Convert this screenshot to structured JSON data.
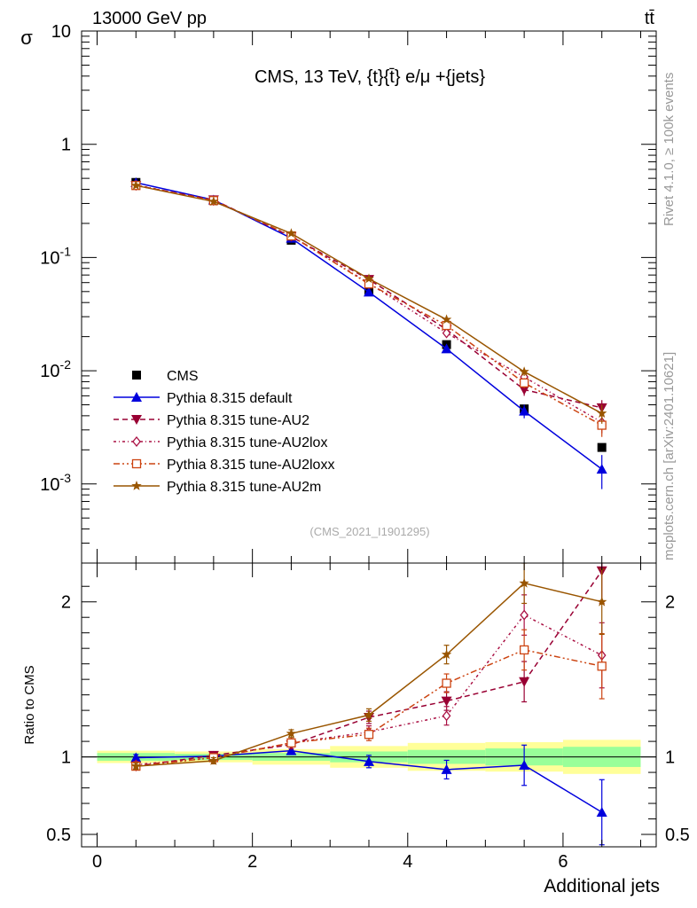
{
  "header": {
    "energy_label": "13000 GeV pp",
    "process_label": "tt̄",
    "side_label_top": "Rivet 4.1.0, ≥ 100k events",
    "side_label_bottom": "mcplots.cern.ch [arXiv:2401.10621]"
  },
  "chart_data": [
    {
      "type": "scatter",
      "panel": "main",
      "title": "CMS, 13 TeV, {t}{t̄} e/μ +{jets}",
      "analysis_tag": "(CMS_2021_I1901295)",
      "ylabel": "σ",
      "yscale": "log",
      "ylim": [
        0.0002,
        10
      ],
      "y_tick_labels": [
        "10",
        "1",
        "10^-1",
        "10^-2",
        "10^-3"
      ],
      "xlim": [
        -0.2,
        7.2
      ],
      "x": [
        0.5,
        1.5,
        2.5,
        3.5,
        4.5,
        5.5,
        6.5
      ],
      "series": [
        {
          "name": "CMS",
          "color": "#000000",
          "marker": "square",
          "line": "none",
          "values": [
            0.46,
            0.32,
            0.142,
            0.051,
            0.017,
            0.0046,
            0.0021
          ]
        },
        {
          "name": "Pythia 8.315 default",
          "color": "#0000dd",
          "marker": "triangle-up",
          "line": "solid",
          "values": [
            0.458,
            0.322,
            0.148,
            0.0495,
            0.0156,
            0.0044,
            0.00135
          ],
          "errors": [
            0.005,
            0.004,
            0.003,
            0.0015,
            0.0008,
            0.0006,
            0.00045
          ]
        },
        {
          "name": "Pythia 8.315 tune-AU2",
          "color": "#990033",
          "marker": "triangle-down",
          "line": "dashed",
          "values": [
            0.432,
            0.323,
            0.153,
            0.064,
            0.0231,
            0.0068,
            0.0047
          ],
          "errors": [
            0.005,
            0.004,
            0.003,
            0.0015,
            0.001,
            0.0008,
            0.0008
          ]
        },
        {
          "name": "Pythia 8.315 tune-AU2lox",
          "color": "#aa1144",
          "marker": "diamond-open",
          "line": "dashdot",
          "values": [
            0.437,
            0.318,
            0.155,
            0.0592,
            0.0215,
            0.0088,
            0.0035
          ],
          "errors": [
            0.005,
            0.004,
            0.003,
            0.0015,
            0.001,
            0.0008,
            0.0007
          ]
        },
        {
          "name": "Pythia 8.315 tune-AU2loxx",
          "color": "#cc4411",
          "marker": "square-open",
          "line": "dashdotdot",
          "values": [
            0.432,
            0.318,
            0.155,
            0.0584,
            0.0251,
            0.0078,
            0.0033
          ],
          "errors": [
            0.005,
            0.004,
            0.003,
            0.0015,
            0.001,
            0.0008,
            0.0007
          ]
        },
        {
          "name": "Pythia 8.315 tune-AU2m",
          "color": "#995500",
          "marker": "star",
          "line": "solid",
          "values": [
            0.432,
            0.312,
            0.163,
            0.0648,
            0.0283,
            0.0098,
            0.0042
          ],
          "errors": [
            0.005,
            0.004,
            0.003,
            0.0015,
            0.001,
            0.0008,
            0.0008
          ]
        }
      ]
    },
    {
      "type": "scatter",
      "panel": "ratio",
      "ylabel": "Ratio to CMS",
      "xlabel": "Additional jets",
      "ylim": [
        0.42,
        2.25
      ],
      "xlim": [
        -0.2,
        7.2
      ],
      "y_ticks": [
        0.5,
        1,
        2
      ],
      "y_tick_labels": [
        "0.5",
        "1",
        "2"
      ],
      "x_ticks": [
        0,
        2,
        4,
        6
      ],
      "x_tick_labels": [
        "0",
        "2",
        "4",
        "6"
      ],
      "x": [
        0.5,
        1.5,
        2.5,
        3.5,
        4.5,
        5.5,
        6.5
      ],
      "data_bands": {
        "edges": [
          0,
          1,
          2,
          3,
          4,
          5,
          6,
          7
        ],
        "stat": [
          0.025,
          0.02,
          0.025,
          0.035,
          0.045,
          0.055,
          0.065
        ],
        "total": [
          0.04,
          0.035,
          0.05,
          0.07,
          0.09,
          0.095,
          0.11
        ]
      },
      "series": [
        {
          "name": "Pythia 8.315 default",
          "values": [
            0.995,
            1.005,
            1.04,
            0.97,
            0.918,
            0.946,
            0.643
          ],
          "errors": [
            0.02,
            0.02,
            0.025,
            0.04,
            0.06,
            0.13,
            0.21
          ]
        },
        {
          "name": "Pythia 8.315 tune-AU2",
          "values": [
            0.94,
            1.01,
            1.078,
            1.255,
            1.36,
            1.485,
            2.2
          ],
          "errors": [
            0.02,
            0.02,
            0.025,
            0.04,
            0.06,
            0.13,
            0.21
          ]
        },
        {
          "name": "Pythia 8.315 tune-AU2lox",
          "values": [
            0.95,
            0.995,
            1.09,
            1.16,
            1.265,
            1.915,
            1.655
          ],
          "errors": [
            0.02,
            0.02,
            0.025,
            0.04,
            0.06,
            0.13,
            0.21
          ]
        },
        {
          "name": "Pythia 8.315 tune-AU2loxx",
          "values": [
            0.94,
            0.995,
            1.09,
            1.145,
            1.475,
            1.69,
            1.585
          ],
          "errors": [
            0.02,
            0.02,
            0.025,
            0.04,
            0.06,
            0.13,
            0.21
          ]
        },
        {
          "name": "Pythia 8.315 tune-AU2m",
          "values": [
            0.94,
            0.975,
            1.15,
            1.27,
            1.66,
            2.12,
            2.0
          ],
          "errors": [
            0.02,
            0.02,
            0.025,
            0.04,
            0.06,
            0.13,
            0.21
          ]
        }
      ]
    }
  ]
}
